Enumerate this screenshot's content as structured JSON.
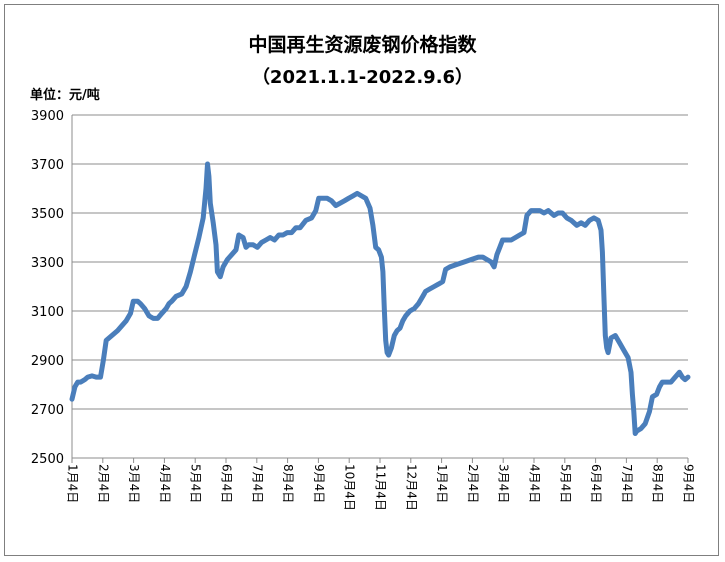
{
  "chart_data": {
    "type": "line",
    "title": "中国再生资源废钢价格指数",
    "subtitle": "（2021.1.1-2022.9.6）",
    "unit_label": "单位：元/吨",
    "xlabel": "",
    "ylabel": "",
    "ylim": [
      2500,
      3900
    ],
    "yticks": [
      2500,
      2700,
      2900,
      3100,
      3300,
      3500,
      3700,
      3900
    ],
    "grid": true,
    "legend": "none",
    "line_color": "#4a7ebb",
    "x_tick_labels": [
      "1月4日",
      "2月4日",
      "3月4日",
      "4月4日",
      "5月4日",
      "6月4日",
      "7月4日",
      "8月4日",
      "9月4日",
      "10月4日",
      "11月4日",
      "12月4日",
      "1月4日",
      "2月4日",
      "3月4日",
      "4月4日",
      "5月4日",
      "6月4日",
      "7月4日",
      "8月4日",
      "9月4日"
    ],
    "series": [
      {
        "values": [
          [
            0,
            2740
          ],
          [
            2,
            2790
          ],
          [
            4,
            2810
          ],
          [
            6,
            2810
          ],
          [
            9,
            2820
          ],
          [
            11,
            2830
          ],
          [
            14,
            2835
          ],
          [
            17,
            2830
          ],
          [
            20,
            2830
          ],
          [
            22,
            2900
          ],
          [
            24,
            2980
          ],
          [
            28,
            3000
          ],
          [
            32,
            3020
          ],
          [
            35,
            3040
          ],
          [
            38,
            3060
          ],
          [
            41,
            3090
          ],
          [
            43,
            3140
          ],
          [
            46,
            3140
          ],
          [
            48,
            3130
          ],
          [
            51,
            3110
          ],
          [
            54,
            3080
          ],
          [
            57,
            3070
          ],
          [
            60,
            3070
          ],
          [
            63,
            3090
          ],
          [
            66,
            3110
          ],
          [
            68,
            3130
          ],
          [
            70,
            3140
          ],
          [
            73,
            3160
          ],
          [
            77,
            3170
          ],
          [
            80,
            3200
          ],
          [
            83,
            3260
          ],
          [
            86,
            3330
          ],
          [
            89,
            3400
          ],
          [
            92,
            3480
          ],
          [
            94,
            3600
          ],
          [
            95,
            3700
          ],
          [
            96,
            3650
          ],
          [
            97,
            3540
          ],
          [
            99,
            3460
          ],
          [
            101,
            3370
          ],
          [
            102,
            3260
          ],
          [
            104,
            3240
          ],
          [
            106,
            3280
          ],
          [
            109,
            3310
          ],
          [
            112,
            3330
          ],
          [
            115,
            3350
          ],
          [
            117,
            3410
          ],
          [
            120,
            3400
          ],
          [
            122,
            3360
          ],
          [
            124,
            3370
          ],
          [
            127,
            3370
          ],
          [
            130,
            3360
          ],
          [
            133,
            3380
          ],
          [
            136,
            3390
          ],
          [
            139,
            3400
          ],
          [
            142,
            3390
          ],
          [
            145,
            3410
          ],
          [
            148,
            3410
          ],
          [
            151,
            3420
          ],
          [
            154,
            3420
          ],
          [
            157,
            3440
          ],
          [
            160,
            3440
          ],
          [
            164,
            3470
          ],
          [
            168,
            3480
          ],
          [
            171,
            3510
          ],
          [
            173,
            3560
          ],
          [
            176,
            3560
          ],
          [
            179,
            3560
          ],
          [
            182,
            3550
          ],
          [
            185,
            3530
          ],
          [
            188,
            3540
          ],
          [
            191,
            3550
          ],
          [
            194,
            3560
          ],
          [
            197,
            3570
          ],
          [
            200,
            3580
          ],
          [
            203,
            3570
          ],
          [
            206,
            3560
          ],
          [
            209,
            3520
          ],
          [
            211,
            3450
          ],
          [
            213,
            3360
          ],
          [
            215,
            3350
          ],
          [
            217,
            3320
          ],
          [
            218,
            3260
          ],
          [
            219,
            3110
          ],
          [
            220,
            2980
          ],
          [
            221,
            2930
          ],
          [
            222,
            2920
          ],
          [
            224,
            2950
          ],
          [
            226,
            3000
          ],
          [
            228,
            3020
          ],
          [
            230,
            3030
          ],
          [
            232,
            3060
          ],
          [
            234,
            3080
          ],
          [
            237,
            3100
          ],
          [
            240,
            3110
          ],
          [
            243,
            3130
          ],
          [
            246,
            3160
          ],
          [
            248,
            3180
          ],
          [
            251,
            3190
          ],
          [
            254,
            3200
          ],
          [
            257,
            3210
          ],
          [
            260,
            3220
          ],
          [
            262,
            3270
          ],
          [
            265,
            3280
          ],
          [
            270,
            3290
          ],
          [
            275,
            3300
          ],
          [
            280,
            3310
          ],
          [
            285,
            3320
          ],
          [
            288,
            3320
          ],
          [
            291,
            3310
          ],
          [
            294,
            3300
          ],
          [
            296,
            3280
          ],
          [
            298,
            3330
          ],
          [
            300,
            3360
          ],
          [
            302,
            3390
          ],
          [
            305,
            3390
          ],
          [
            308,
            3390
          ],
          [
            311,
            3400
          ],
          [
            314,
            3410
          ],
          [
            317,
            3420
          ],
          [
            319,
            3490
          ],
          [
            322,
            3510
          ],
          [
            325,
            3510
          ],
          [
            328,
            3510
          ],
          [
            331,
            3500
          ],
          [
            334,
            3510
          ],
          [
            336,
            3500
          ],
          [
            338,
            3490
          ],
          [
            341,
            3500
          ],
          [
            344,
            3500
          ],
          [
            347,
            3480
          ],
          [
            350,
            3470
          ],
          [
            352,
            3460
          ],
          [
            354,
            3450
          ],
          [
            357,
            3460
          ],
          [
            360,
            3450
          ],
          [
            363,
            3470
          ],
          [
            366,
            3480
          ],
          [
            369,
            3470
          ],
          [
            371,
            3430
          ],
          [
            372,
            3340
          ],
          [
            373,
            3160
          ],
          [
            374,
            3000
          ],
          [
            375,
            2950
          ],
          [
            376,
            2930
          ],
          [
            378,
            2990
          ],
          [
            381,
            3000
          ],
          [
            384,
            2970
          ],
          [
            387,
            2940
          ],
          [
            390,
            2910
          ],
          [
            392,
            2850
          ],
          [
            393,
            2760
          ],
          [
            394,
            2690
          ],
          [
            395,
            2600
          ],
          [
            396,
            2610
          ],
          [
            399,
            2620
          ],
          [
            402,
            2640
          ],
          [
            405,
            2690
          ],
          [
            407,
            2750
          ],
          [
            410,
            2760
          ],
          [
            412,
            2790
          ],
          [
            414,
            2810
          ],
          [
            417,
            2810
          ],
          [
            420,
            2810
          ],
          [
            423,
            2830
          ],
          [
            426,
            2850
          ],
          [
            428,
            2830
          ],
          [
            430,
            2820
          ],
          [
            432,
            2830
          ]
        ]
      }
    ]
  }
}
